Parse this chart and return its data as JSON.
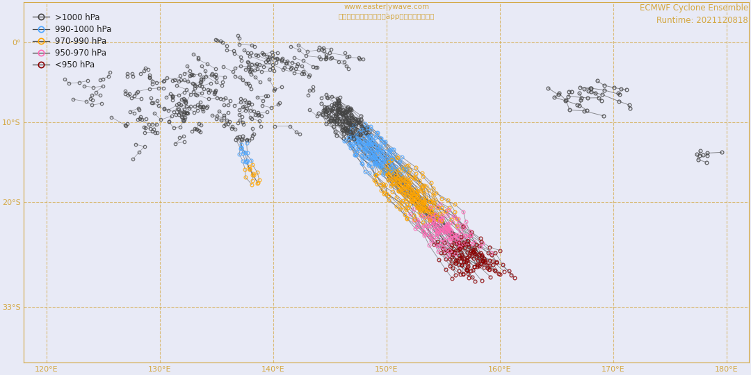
{
  "title_center": "www.easterlywave.com\n未经许可禁止其他网站或app使用技术手段爬取",
  "title_right": "ECMWF Cyclone Ensemble\nRuntime: 2021120818",
  "background_color": "#e8eaf6",
  "land_color": "#e8d5a3",
  "land_edge_color": "#c8b87a",
  "grid_color": "#d4a843",
  "grid_alpha": 0.7,
  "text_color": "#d4a843",
  "pressure_colors": {
    ">1000": "#444444",
    "990-1000": "#4da6ff",
    "970-990": "#ffa500",
    "950-970": "#ff69b4",
    "<950": "#8b0000"
  },
  "xlim": [
    118,
    182
  ],
  "ylim": [
    -40,
    5
  ],
  "xticks": [
    120,
    130,
    140,
    150,
    160,
    170,
    180
  ],
  "yticks": [
    0,
    -10,
    -20,
    -33
  ],
  "figsize": [
    10.8,
    5.4
  ],
  "dpi": 100
}
